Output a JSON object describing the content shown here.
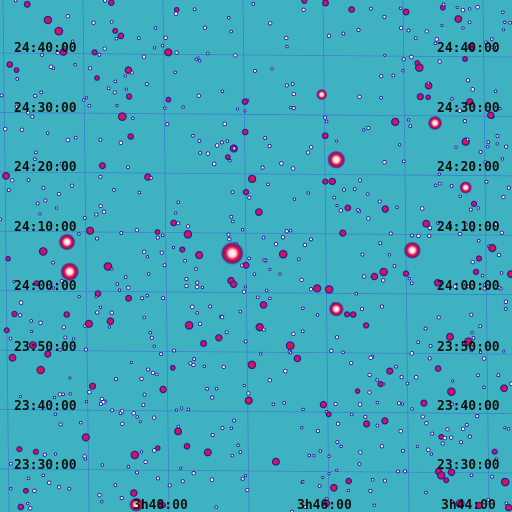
{
  "map": {
    "colors": {
      "background": "#3fb2c2",
      "grid": "#3f7fd0",
      "star_outer": "#2a1aa0",
      "star_mid": "#d6154e",
      "star_core": "#ffffff",
      "label": "#111111"
    },
    "dec_labels": [
      "24:40:00",
      "24:30:00",
      "24:20:00",
      "24:10:00",
      "24:00:00",
      "23:50:00",
      "23:40:00",
      "23:30:00"
    ],
    "ra_labels": [
      "3h48:00",
      "3h46:00",
      "3h44:00"
    ],
    "bright_stars": [
      {
        "ra": "3h47:08",
        "dec": "24:06:18",
        "mag": 2.9
      },
      {
        "ra": "3h45:50",
        "dec": "24:22:03",
        "mag": 3.7
      },
      {
        "ra": "3h44:53",
        "dec": "24:06:48",
        "mag": 3.8
      },
      {
        "ra": "3h45:50",
        "dec": "23:56:54",
        "mag": 4.2
      },
      {
        "ra": "3h44:36",
        "dec": "24:28:13",
        "mag": 4.3
      },
      {
        "ra": "3h49:10",
        "dec": "24:03:12",
        "mag": 3.6
      },
      {
        "ra": "3h49:12",
        "dec": "24:08:12",
        "mag": 3.9
      },
      {
        "ra": "3h48:20",
        "dec": "23:24:00",
        "mag": 4.3
      },
      {
        "ra": "3h44:13",
        "dec": "24:17:22",
        "mag": 4.6
      },
      {
        "ra": "3h46:01",
        "dec": "24:33:00",
        "mag": 4.8
      }
    ]
  }
}
